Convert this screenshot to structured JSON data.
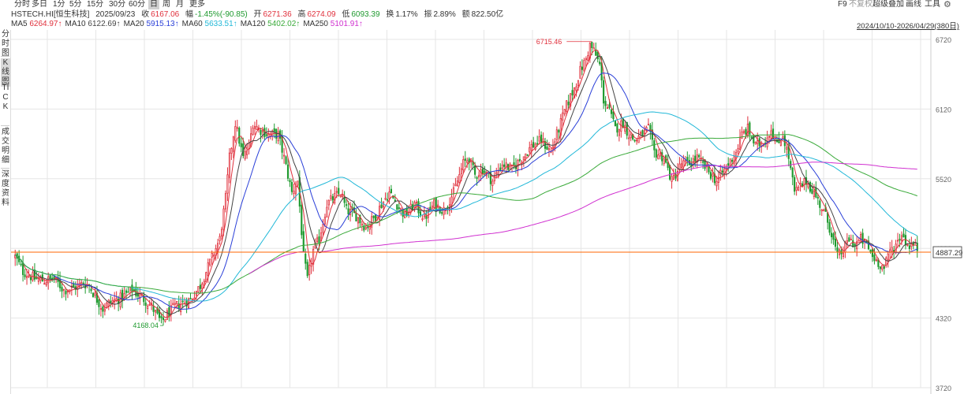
{
  "toolbar": {
    "periods": [
      "分时",
      "多日",
      "1分",
      "5分",
      "15分",
      "30分",
      "60分",
      "日",
      "周",
      "月",
      "更多"
    ],
    "active_period": "日",
    "right": {
      "f9": "F9",
      "fuquan": "不复权",
      "overlay": "超级叠加",
      "draw": "画线",
      "tools": "工具",
      "settings_icon": "gear-icon"
    }
  },
  "info": {
    "symbol": "HSTECH.HI[恒生科技]",
    "date": "2025/09/23",
    "close_label": "收",
    "close": "6167.06",
    "change_label": "幅",
    "change": "-1.45%(-90.85)",
    "open_label": "开",
    "open": "6271.36",
    "high_label": "高",
    "high": "6274.09",
    "low_label": "低",
    "low": "6093.39",
    "turnover_label": "换",
    "turnover": "1.17%",
    "amplitude_label": "振",
    "amplitude": "2.89%",
    "amount_label": "额",
    "amount": "822.50亿"
  },
  "ma_legend": [
    {
      "label": "MA5",
      "value": "6264.97↑",
      "color": "#e0303c"
    },
    {
      "label": "MA10",
      "value": "6122.69↑",
      "color": "#444444"
    },
    {
      "label": "MA20",
      "value": "5915.13↑",
      "color": "#2a3fd8"
    },
    {
      "label": "MA60",
      "value": "5633.51↑",
      "color": "#22b8d8"
    },
    {
      "label": "MA120",
      "value": "5402.02↑",
      "color": "#3aaa3a"
    },
    {
      "label": "MA250",
      "value": "5101.91↑",
      "color": "#d030d0"
    }
  ],
  "range_label": "2024/10/10-2026/04/29(380日)",
  "side_tabs": [
    "分时图",
    "K线图",
    "TICK",
    "成交明细",
    "深度资料"
  ],
  "colors": {
    "up": "#e0303c",
    "down": "#1f9a2f",
    "price_line": "#ff6600",
    "grid": "#e6e6e6"
  },
  "chart_data": {
    "type": "candlestick",
    "y_ticks": [
      3720,
      4320,
      4920,
      5520,
      6120,
      6720
    ],
    "ylim": [
      3720,
      6720
    ],
    "current_price": 4887.29,
    "max_label": "6715.46",
    "min_label": "4168.04",
    "anchors": [
      [
        0,
        4850
      ],
      [
        4,
        4720
      ],
      [
        10,
        4660
      ],
      [
        15,
        4640
      ],
      [
        20,
        4660
      ],
      [
        25,
        4560
      ],
      [
        30,
        4580
      ],
      [
        35,
        4620
      ],
      [
        38,
        4600
      ],
      [
        42,
        4480
      ],
      [
        45,
        4400
      ],
      [
        48,
        4450
      ],
      [
        55,
        4500
      ],
      [
        60,
        4560
      ],
      [
        65,
        4500
      ],
      [
        70,
        4420
      ],
      [
        75,
        4280
      ],
      [
        78,
        4350
      ],
      [
        82,
        4420
      ],
      [
        90,
        4480
      ],
      [
        95,
        4600
      ],
      [
        100,
        4800
      ],
      [
        105,
        5000
      ],
      [
        108,
        5350
      ],
      [
        110,
        5700
      ],
      [
        113,
        6000
      ],
      [
        117,
        5700
      ],
      [
        120,
        5800
      ],
      [
        122,
        6000
      ],
      [
        125,
        5950
      ],
      [
        130,
        5900
      ],
      [
        135,
        5900
      ],
      [
        138,
        5700
      ],
      [
        142,
        5400
      ],
      [
        145,
        5500
      ],
      [
        148,
        4850
      ],
      [
        150,
        4650
      ],
      [
        153,
        4900
      ],
      [
        156,
        5000
      ],
      [
        160,
        5300
      ],
      [
        163,
        5350
      ],
      [
        167,
        5400
      ],
      [
        170,
        5250
      ],
      [
        175,
        5200
      ],
      [
        180,
        5100
      ],
      [
        185,
        5200
      ],
      [
        188,
        5300
      ],
      [
        192,
        5400
      ],
      [
        196,
        5300
      ],
      [
        200,
        5200
      ],
      [
        205,
        5300
      ],
      [
        210,
        5180
      ],
      [
        215,
        5300
      ],
      [
        220,
        5250
      ],
      [
        225,
        5400
      ],
      [
        230,
        5650
      ],
      [
        233,
        5700
      ],
      [
        236,
        5550
      ],
      [
        240,
        5600
      ],
      [
        245,
        5500
      ],
      [
        250,
        5650
      ],
      [
        255,
        5600
      ],
      [
        260,
        5700
      ],
      [
        265,
        5800
      ],
      [
        270,
        5850
      ],
      [
        275,
        5750
      ],
      [
        280,
        6000
      ],
      [
        283,
        6150
      ],
      [
        287,
        6300
      ],
      [
        290,
        6450
      ],
      [
        293,
        6550
      ],
      [
        295,
        6670
      ],
      [
        297,
        6620
      ],
      [
        300,
        6500
      ],
      [
        302,
        6200
      ],
      [
        305,
        6100
      ],
      [
        308,
        5950
      ],
      [
        312,
        6000
      ],
      [
        315,
        5900
      ],
      [
        318,
        5850
      ],
      [
        322,
        5900
      ],
      [
        325,
        5950
      ],
      [
        328,
        5750
      ],
      [
        333,
        5700
      ],
      [
        337,
        5500
      ],
      [
        342,
        5650
      ],
      [
        346,
        5650
      ],
      [
        350,
        5700
      ],
      [
        355,
        5600
      ],
      [
        360,
        5500
      ],
      [
        365,
        5620
      ],
      [
        370,
        5750
      ],
      [
        373,
        5900
      ],
      [
        376,
        5950
      ],
      [
        380,
        5800
      ],
      [
        385,
        5850
      ],
      [
        388,
        5950
      ],
      [
        391,
        5800
      ],
      [
        394,
        5900
      ],
      [
        397,
        5700
      ],
      [
        400,
        5400
      ],
      [
        403,
        5450
      ],
      [
        406,
        5500
      ],
      [
        410,
        5400
      ],
      [
        413,
        5300
      ],
      [
        416,
        5200
      ],
      [
        419,
        5050
      ],
      [
        422,
        4850
      ],
      [
        425,
        4900
      ],
      [
        428,
        5000
      ],
      [
        431,
        4950
      ],
      [
        434,
        5000
      ],
      [
        437,
        4950
      ],
      [
        440,
        4850
      ],
      [
        443,
        4800
      ],
      [
        446,
        4750
      ],
      [
        449,
        4900
      ],
      [
        452,
        4950
      ],
      [
        455,
        5050
      ],
      [
        458,
        4950
      ],
      [
        461,
        4950
      ],
      [
        463,
        4920
      ]
    ],
    "ma_series": [
      {
        "label": "MA5",
        "window": 5,
        "start": 0
      },
      {
        "label": "MA10",
        "window": 10,
        "start": 0
      },
      {
        "label": "MA20",
        "window": 20,
        "start": 0
      },
      {
        "label": "MA60",
        "window": 60,
        "start": 0
      },
      {
        "label": "MA120",
        "window": 120,
        "start": 0
      },
      {
        "label": "MA250",
        "window": 250,
        "start": 0
      }
    ]
  }
}
